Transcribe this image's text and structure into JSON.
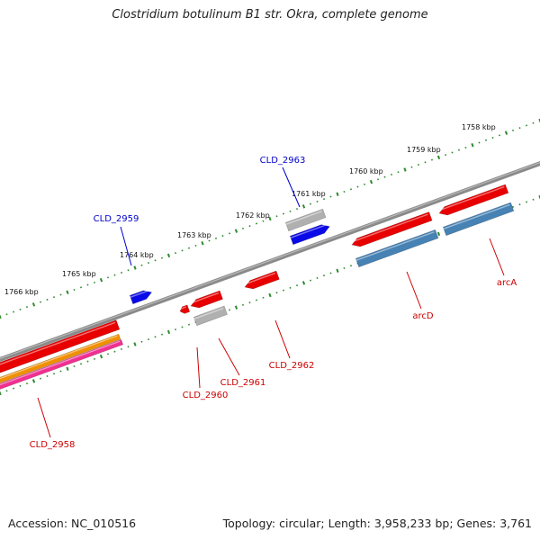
{
  "title": "Clostridium botulinum B1 str. Okra, complete genome",
  "footer": {
    "accession": "Accession: NC_010516",
    "topology": "Topology: circular; Length: 3,958,233 bp; Genes: 3,761"
  },
  "scale": {
    "unit": "kbp",
    "labels": [
      "1758 kbp",
      "1759 kbp",
      "1760 kbp",
      "1761 kbp",
      "1762 kbp",
      "1763 kbp",
      "1764 kbp",
      "1765 kbp",
      "1766 kbp"
    ]
  },
  "genes": [
    {
      "label": "CLD_2963",
      "strand": "forward",
      "color": "#0000cc"
    },
    {
      "label": "CLD_2959",
      "strand": "forward",
      "color": "#0000cc"
    },
    {
      "label": "arcD",
      "strand": "reverse",
      "color": "#cc0000"
    },
    {
      "label": "arcA",
      "strand": "reverse",
      "color": "#cc0000"
    },
    {
      "label": "CLD_2962",
      "strand": "reverse",
      "color": "#cc0000"
    },
    {
      "label": "CLD_2961",
      "strand": "reverse",
      "color": "#cc0000"
    },
    {
      "label": "CLD_2960",
      "strand": "reverse",
      "color": "#cc0000"
    },
    {
      "label": "CLD_2958",
      "strand": "reverse",
      "color": "#cc0000"
    }
  ],
  "colors": {
    "backbone": "#7a7a7a",
    "tick": "#2e8b2e",
    "gene_red": "#e80000",
    "gene_blue": "#0a0ae8",
    "gene_grey": "#b0b0b0",
    "gene_steel": "#4682b4",
    "gene_orange": "#f09000",
    "gene_pink": "#f03090"
  }
}
